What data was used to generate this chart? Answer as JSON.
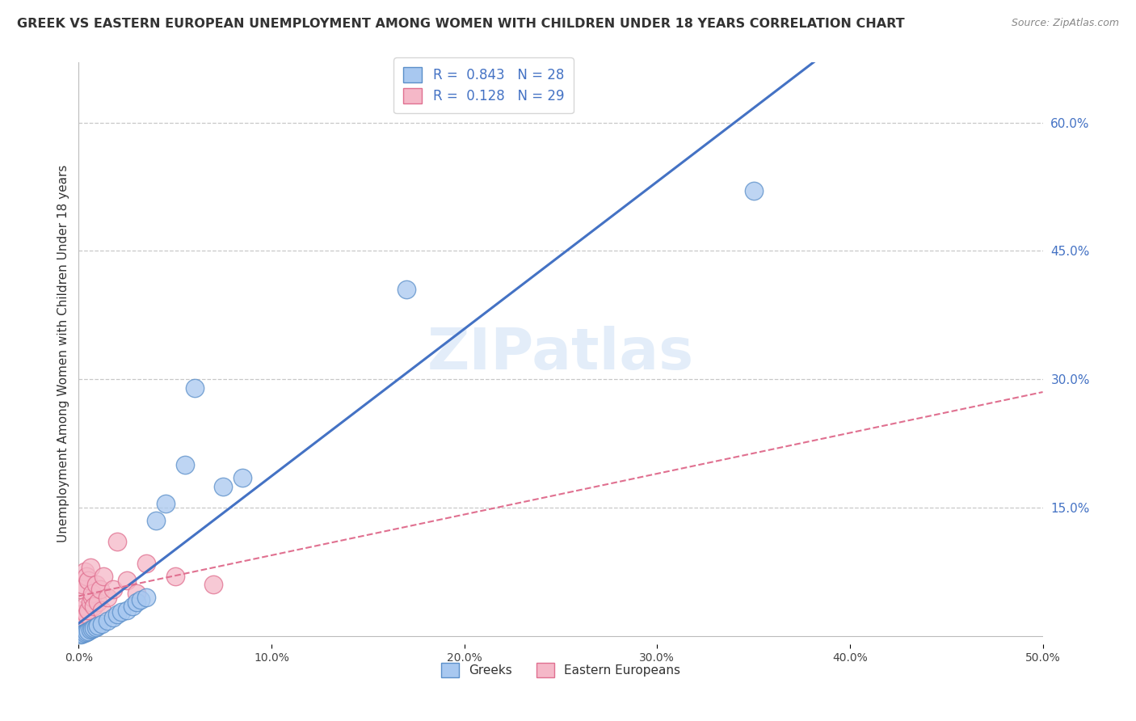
{
  "title": "GREEK VS EASTERN EUROPEAN UNEMPLOYMENT AMONG WOMEN WITH CHILDREN UNDER 18 YEARS CORRELATION CHART",
  "source": "Source: ZipAtlas.com",
  "ylabel": "Unemployment Among Women with Children Under 18 years",
  "xlim": [
    0.0,
    0.5
  ],
  "ylim": [
    -0.01,
    0.67
  ],
  "xtick_vals": [
    0.0,
    0.1,
    0.2,
    0.3,
    0.4,
    0.5
  ],
  "ytick_vals_right": [
    0.15,
    0.3,
    0.45,
    0.6
  ],
  "greek_color": "#a8c8f0",
  "greek_edge_color": "#5b8fc9",
  "eastern_color": "#f5b8c8",
  "eastern_edge_color": "#e07090",
  "greek_line_color": "#4472c4",
  "eastern_line_color": "#e07090",
  "R_greek": 0.843,
  "N_greek": 28,
  "R_eastern": 0.128,
  "N_eastern": 29,
  "legend_label_greek": "Greeks",
  "legend_label_eastern": "Eastern Europeans",
  "watermark": "ZIPatlas",
  "background_color": "#ffffff",
  "grid_color": "#c8c8c8",
  "title_fontsize": 11.5,
  "axis_label_fontsize": 11,
  "greek_x": [
    0.001,
    0.002,
    0.003,
    0.004,
    0.005,
    0.006,
    0.007,
    0.008,
    0.009,
    0.01,
    0.012,
    0.015,
    0.018,
    0.02,
    0.022,
    0.025,
    0.028,
    0.03,
    0.032,
    0.035,
    0.04,
    0.045,
    0.055,
    0.06,
    0.075,
    0.085,
    0.17,
    0.35
  ],
  "greek_y": [
    0.002,
    0.003,
    0.004,
    0.005,
    0.006,
    0.007,
    0.008,
    0.009,
    0.01,
    0.012,
    0.014,
    0.018,
    0.022,
    0.025,
    0.028,
    0.03,
    0.035,
    0.04,
    0.042,
    0.045,
    0.135,
    0.155,
    0.2,
    0.29,
    0.175,
    0.185,
    0.405,
    0.52
  ],
  "eastern_x": [
    0.0,
    0.001,
    0.001,
    0.002,
    0.002,
    0.003,
    0.003,
    0.004,
    0.004,
    0.005,
    0.005,
    0.006,
    0.006,
    0.007,
    0.007,
    0.008,
    0.009,
    0.01,
    0.011,
    0.012,
    0.013,
    0.015,
    0.018,
    0.02,
    0.025,
    0.03,
    0.035,
    0.05,
    0.07
  ],
  "eastern_y": [
    0.03,
    0.025,
    0.055,
    0.02,
    0.06,
    0.035,
    0.075,
    0.025,
    0.07,
    0.03,
    0.065,
    0.04,
    0.08,
    0.045,
    0.05,
    0.035,
    0.06,
    0.04,
    0.055,
    0.03,
    0.07,
    0.045,
    0.055,
    0.11,
    0.065,
    0.05,
    0.085,
    0.07,
    0.06
  ]
}
